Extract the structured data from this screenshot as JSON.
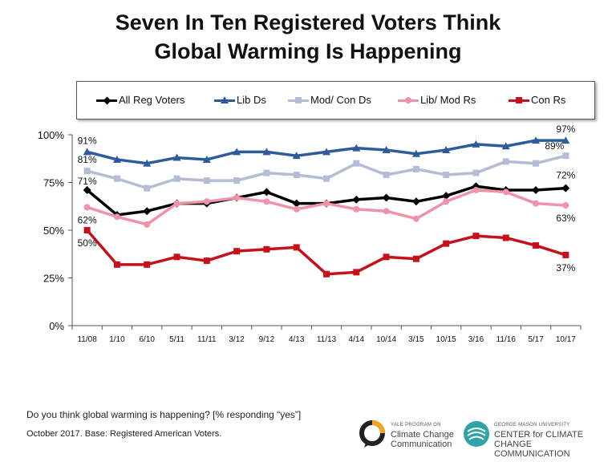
{
  "title_lines": [
    "Seven In Ten Registered Voters Think",
    "Global Warming Is Happening"
  ],
  "colors": {
    "all": "#000000",
    "libd": "#2e5b9b",
    "modcond": "#b4bcd6",
    "libmodr": "#f092a8",
    "conr": "#c8101a"
  },
  "chart_data": {
    "type": "line",
    "title": "Seven In Ten Registered Voters Think Global Warming Is Happening",
    "categories": [
      "11/08",
      "1/10",
      "6/10",
      "5/11",
      "11/11",
      "3/12",
      "9/12",
      "4/13",
      "11/13",
      "4/14",
      "10/14",
      "3/15",
      "10/15",
      "3/16",
      "11/16",
      "5/17",
      "10/17"
    ],
    "ylim": [
      0,
      100
    ],
    "yticks": [
      "0%",
      "25%",
      "50%",
      "75%",
      "100%"
    ],
    "ytick_values": [
      0,
      25,
      50,
      75,
      100
    ],
    "legend_position": "top",
    "series": [
      {
        "key": "all",
        "name": "All Reg Voters",
        "marker": "diamond",
        "values": [
          71,
          58,
          60,
          64,
          64,
          67,
          70,
          64,
          64,
          66,
          67,
          65,
          68,
          73,
          71,
          71,
          72
        ]
      },
      {
        "key": "libd",
        "name": "Lib Ds",
        "marker": "triangle",
        "values": [
          91,
          87,
          85,
          88,
          87,
          91,
          91,
          89,
          91,
          93,
          92,
          90,
          92,
          95,
          94,
          97,
          97
        ]
      },
      {
        "key": "modcond",
        "name": "Mod/ Con Ds",
        "marker": "square",
        "values": [
          81,
          77,
          72,
          77,
          76,
          76,
          80,
          79,
          77,
          85,
          79,
          82,
          79,
          80,
          86,
          85,
          89
        ]
      },
      {
        "key": "libmodr",
        "name": "Lib/ Mod Rs",
        "marker": "circle",
        "values": [
          62,
          57,
          53,
          64,
          65,
          67,
          65,
          61,
          64,
          61,
          60,
          56,
          65,
          71,
          70,
          64,
          63
        ]
      },
      {
        "key": "conr",
        "name": "Con Rs",
        "marker": "square",
        "values": [
          50,
          32,
          32,
          36,
          34,
          39,
          40,
          41,
          27,
          28,
          36,
          35,
          43,
          47,
          46,
          42,
          37
        ]
      }
    ],
    "annotations": [
      {
        "text": "91%",
        "series": "libd",
        "index": 0
      },
      {
        "text": "81%",
        "series": "modcond",
        "index": 0
      },
      {
        "text": "71%",
        "series": "all",
        "index": 0
      },
      {
        "text": "62%",
        "series": "libmodr",
        "index": 0
      },
      {
        "text": "50%",
        "series": "conr",
        "index": 0
      },
      {
        "text": "97%",
        "series": "libd",
        "index": 16
      },
      {
        "text": "89%",
        "series": "modcond",
        "index": 16
      },
      {
        "text": "72%",
        "series": "all",
        "index": 16
      },
      {
        "text": "63%",
        "series": "libmodr",
        "index": 16
      },
      {
        "text": "37%",
        "series": "conr",
        "index": 16
      }
    ]
  },
  "footer": {
    "question": "Do you think global warming is happening? [% responding “yes”]",
    "note": "October 2017. Base: Registered American Voters."
  },
  "logos": {
    "yale": {
      "small": "YALE PROGRAM ON",
      "line1": "Climate Change",
      "line2": "Communication"
    },
    "gmu": {
      "small": "GEORGE MASON UNIVERSITY",
      "line1": "CENTER for CLIMATE CHANGE",
      "line2": "COMMUNICATION"
    }
  }
}
